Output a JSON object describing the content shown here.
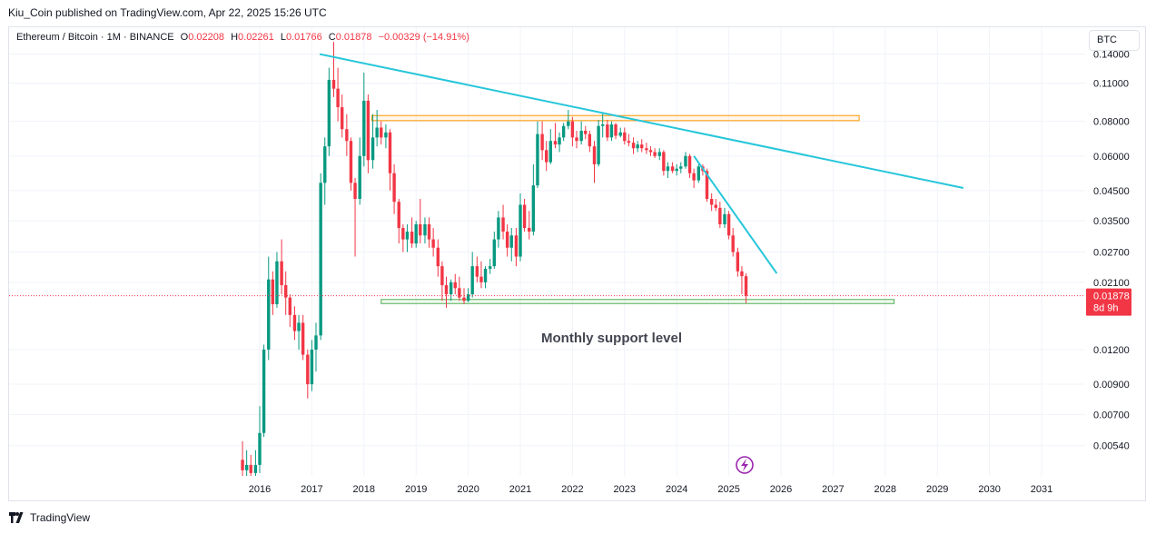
{
  "publish_line": "Kiu_Coin published on TradingView.com, Apr 22, 2025 15:26 UTC",
  "symbol": {
    "name": "Ethereum / Bitcoin · 1M · BINANCE",
    "open_label": "O",
    "open": "0.02208",
    "high_label": "H",
    "high": "0.02261",
    "low_label": "L",
    "low": "0.01766",
    "close_label": "C",
    "close": "0.01878",
    "change": "−0.00329 (−14.91%)"
  },
  "currency_button": "BTC",
  "price_tag": {
    "price": "0.01878",
    "countdown": "8d 9h"
  },
  "annotation": "Monthly support level",
  "footer_brand": "TradingView",
  "colors": {
    "up": "#089981",
    "down": "#f23645",
    "trendline": "#26c6da",
    "resistance_zone": "#ff9800",
    "support_zone": "#4caf50",
    "grid": "#f0f3fa"
  },
  "chart_data": {
    "type": "candlestick",
    "scale": "log",
    "y_ticks": [
      "0.14000",
      "0.11000",
      "0.08000",
      "0.06000",
      "0.04500",
      "0.03500",
      "0.02700",
      "0.02100",
      "0.01200",
      "0.00900",
      "0.00700",
      "0.00540"
    ],
    "x_ticks": [
      "2016",
      "2017",
      "2018",
      "2019",
      "2020",
      "2021",
      "2022",
      "2023",
      "2024",
      "2025",
      "2026",
      "2027",
      "2028",
      "2029",
      "2030",
      "2031"
    ],
    "ylim": [
      0.0042,
      0.175
    ],
    "candles": [
      {
        "t": 2015.67,
        "o": 0.0048,
        "h": 0.0056,
        "l": 0.0042,
        "c": 0.0044
      },
      {
        "t": 2015.75,
        "o": 0.0044,
        "h": 0.0052,
        "l": 0.0042,
        "c": 0.0046
      },
      {
        "t": 2015.83,
        "o": 0.0046,
        "h": 0.005,
        "l": 0.0042,
        "c": 0.0043
      },
      {
        "t": 2015.92,
        "o": 0.0043,
        "h": 0.0052,
        "l": 0.0042,
        "c": 0.0046
      },
      {
        "t": 2016.0,
        "o": 0.0046,
        "h": 0.0075,
        "l": 0.0043,
        "c": 0.006
      },
      {
        "t": 2016.08,
        "o": 0.006,
        "h": 0.0125,
        "l": 0.0058,
        "c": 0.012
      },
      {
        "t": 2016.17,
        "o": 0.012,
        "h": 0.026,
        "l": 0.011,
        "c": 0.0215
      },
      {
        "t": 2016.25,
        "o": 0.0215,
        "h": 0.023,
        "l": 0.016,
        "c": 0.0175
      },
      {
        "t": 2016.33,
        "o": 0.0175,
        "h": 0.027,
        "l": 0.017,
        "c": 0.025
      },
      {
        "t": 2016.42,
        "o": 0.025,
        "h": 0.03,
        "l": 0.019,
        "c": 0.0205
      },
      {
        "t": 2016.5,
        "o": 0.0205,
        "h": 0.023,
        "l": 0.016,
        "c": 0.0185
      },
      {
        "t": 2016.58,
        "o": 0.0185,
        "h": 0.019,
        "l": 0.0145,
        "c": 0.016
      },
      {
        "t": 2016.67,
        "o": 0.016,
        "h": 0.0172,
        "l": 0.013,
        "c": 0.014
      },
      {
        "t": 2016.75,
        "o": 0.014,
        "h": 0.016,
        "l": 0.012,
        "c": 0.015
      },
      {
        "t": 2016.83,
        "o": 0.015,
        "h": 0.016,
        "l": 0.011,
        "c": 0.0115
      },
      {
        "t": 2016.92,
        "o": 0.0115,
        "h": 0.012,
        "l": 0.008,
        "c": 0.009
      },
      {
        "t": 2017.0,
        "o": 0.009,
        "h": 0.013,
        "l": 0.0085,
        "c": 0.012
      },
      {
        "t": 2017.08,
        "o": 0.012,
        "h": 0.015,
        "l": 0.01,
        "c": 0.0135
      },
      {
        "t": 2017.17,
        "o": 0.0135,
        "h": 0.052,
        "l": 0.013,
        "c": 0.048
      },
      {
        "t": 2017.25,
        "o": 0.048,
        "h": 0.07,
        "l": 0.04,
        "c": 0.065
      },
      {
        "t": 2017.33,
        "o": 0.065,
        "h": 0.125,
        "l": 0.06,
        "c": 0.113
      },
      {
        "t": 2017.42,
        "o": 0.113,
        "h": 0.155,
        "l": 0.098,
        "c": 0.105
      },
      {
        "t": 2017.5,
        "o": 0.105,
        "h": 0.125,
        "l": 0.08,
        "c": 0.09
      },
      {
        "t": 2017.58,
        "o": 0.09,
        "h": 0.1,
        "l": 0.07,
        "c": 0.075
      },
      {
        "t": 2017.67,
        "o": 0.075,
        "h": 0.085,
        "l": 0.06,
        "c": 0.068
      },
      {
        "t": 2017.75,
        "o": 0.068,
        "h": 0.07,
        "l": 0.045,
        "c": 0.048
      },
      {
        "t": 2017.83,
        "o": 0.048,
        "h": 0.05,
        "l": 0.026,
        "c": 0.042
      },
      {
        "t": 2017.92,
        "o": 0.042,
        "h": 0.07,
        "l": 0.04,
        "c": 0.06
      },
      {
        "t": 2018.0,
        "o": 0.06,
        "h": 0.12,
        "l": 0.055,
        "c": 0.095
      },
      {
        "t": 2018.08,
        "o": 0.095,
        "h": 0.1,
        "l": 0.052,
        "c": 0.058
      },
      {
        "t": 2018.17,
        "o": 0.058,
        "h": 0.085,
        "l": 0.054,
        "c": 0.07
      },
      {
        "t": 2018.25,
        "o": 0.07,
        "h": 0.088,
        "l": 0.065,
        "c": 0.076
      },
      {
        "t": 2018.33,
        "o": 0.076,
        "h": 0.08,
        "l": 0.066,
        "c": 0.07
      },
      {
        "t": 2018.42,
        "o": 0.07,
        "h": 0.078,
        "l": 0.064,
        "c": 0.073
      },
      {
        "t": 2018.5,
        "o": 0.073,
        "h": 0.075,
        "l": 0.045,
        "c": 0.052
      },
      {
        "t": 2018.58,
        "o": 0.052,
        "h": 0.056,
        "l": 0.037,
        "c": 0.041
      },
      {
        "t": 2018.67,
        "o": 0.041,
        "h": 0.042,
        "l": 0.029,
        "c": 0.033
      },
      {
        "t": 2018.75,
        "o": 0.033,
        "h": 0.034,
        "l": 0.027,
        "c": 0.03
      },
      {
        "t": 2018.83,
        "o": 0.03,
        "h": 0.034,
        "l": 0.027,
        "c": 0.032
      },
      {
        "t": 2018.92,
        "o": 0.032,
        "h": 0.036,
        "l": 0.028,
        "c": 0.029
      },
      {
        "t": 2019.0,
        "o": 0.029,
        "h": 0.035,
        "l": 0.028,
        "c": 0.034
      },
      {
        "t": 2019.08,
        "o": 0.034,
        "h": 0.042,
        "l": 0.029,
        "c": 0.031
      },
      {
        "t": 2019.17,
        "o": 0.031,
        "h": 0.036,
        "l": 0.029,
        "c": 0.034
      },
      {
        "t": 2019.25,
        "o": 0.034,
        "h": 0.036,
        "l": 0.028,
        "c": 0.03
      },
      {
        "t": 2019.33,
        "o": 0.03,
        "h": 0.033,
        "l": 0.026,
        "c": 0.028
      },
      {
        "t": 2019.42,
        "o": 0.028,
        "h": 0.03,
        "l": 0.022,
        "c": 0.024
      },
      {
        "t": 2019.5,
        "o": 0.024,
        "h": 0.025,
        "l": 0.018,
        "c": 0.0205
      },
      {
        "t": 2019.58,
        "o": 0.0205,
        "h": 0.022,
        "l": 0.017,
        "c": 0.019
      },
      {
        "t": 2019.67,
        "o": 0.019,
        "h": 0.0215,
        "l": 0.018,
        "c": 0.021
      },
      {
        "t": 2019.75,
        "o": 0.021,
        "h": 0.0225,
        "l": 0.019,
        "c": 0.02
      },
      {
        "t": 2019.83,
        "o": 0.02,
        "h": 0.022,
        "l": 0.018,
        "c": 0.0185
      },
      {
        "t": 2019.92,
        "o": 0.0185,
        "h": 0.02,
        "l": 0.0175,
        "c": 0.018
      },
      {
        "t": 2020.0,
        "o": 0.018,
        "h": 0.02,
        "l": 0.0178,
        "c": 0.019
      },
      {
        "t": 2020.08,
        "o": 0.019,
        "h": 0.027,
        "l": 0.0185,
        "c": 0.024
      },
      {
        "t": 2020.17,
        "o": 0.024,
        "h": 0.026,
        "l": 0.021,
        "c": 0.022
      },
      {
        "t": 2020.25,
        "o": 0.022,
        "h": 0.025,
        "l": 0.02,
        "c": 0.021
      },
      {
        "t": 2020.33,
        "o": 0.021,
        "h": 0.024,
        "l": 0.02,
        "c": 0.0235
      },
      {
        "t": 2020.42,
        "o": 0.0235,
        "h": 0.0255,
        "l": 0.0225,
        "c": 0.024
      },
      {
        "t": 2020.5,
        "o": 0.024,
        "h": 0.032,
        "l": 0.0235,
        "c": 0.03
      },
      {
        "t": 2020.58,
        "o": 0.03,
        "h": 0.038,
        "l": 0.028,
        "c": 0.036
      },
      {
        "t": 2020.67,
        "o": 0.036,
        "h": 0.04,
        "l": 0.03,
        "c": 0.032
      },
      {
        "t": 2020.75,
        "o": 0.032,
        "h": 0.034,
        "l": 0.026,
        "c": 0.028
      },
      {
        "t": 2020.83,
        "o": 0.028,
        "h": 0.033,
        "l": 0.025,
        "c": 0.031
      },
      {
        "t": 2020.92,
        "o": 0.031,
        "h": 0.033,
        "l": 0.024,
        "c": 0.026
      },
      {
        "t": 2021.0,
        "o": 0.026,
        "h": 0.044,
        "l": 0.025,
        "c": 0.04
      },
      {
        "t": 2021.08,
        "o": 0.04,
        "h": 0.042,
        "l": 0.032,
        "c": 0.033
      },
      {
        "t": 2021.17,
        "o": 0.033,
        "h": 0.038,
        "l": 0.03,
        "c": 0.032
      },
      {
        "t": 2021.25,
        "o": 0.032,
        "h": 0.056,
        "l": 0.031,
        "c": 0.047
      },
      {
        "t": 2021.33,
        "o": 0.047,
        "h": 0.08,
        "l": 0.046,
        "c": 0.072
      },
      {
        "t": 2021.42,
        "o": 0.072,
        "h": 0.08,
        "l": 0.058,
        "c": 0.063
      },
      {
        "t": 2021.5,
        "o": 0.063,
        "h": 0.068,
        "l": 0.053,
        "c": 0.057
      },
      {
        "t": 2021.58,
        "o": 0.057,
        "h": 0.075,
        "l": 0.056,
        "c": 0.068
      },
      {
        "t": 2021.67,
        "o": 0.068,
        "h": 0.079,
        "l": 0.064,
        "c": 0.066
      },
      {
        "t": 2021.75,
        "o": 0.066,
        "h": 0.073,
        "l": 0.062,
        "c": 0.07
      },
      {
        "t": 2021.83,
        "o": 0.07,
        "h": 0.079,
        "l": 0.068,
        "c": 0.077
      },
      {
        "t": 2021.92,
        "o": 0.077,
        "h": 0.088,
        "l": 0.075,
        "c": 0.08
      },
      {
        "t": 2022.0,
        "o": 0.08,
        "h": 0.083,
        "l": 0.065,
        "c": 0.07
      },
      {
        "t": 2022.08,
        "o": 0.07,
        "h": 0.074,
        "l": 0.064,
        "c": 0.068
      },
      {
        "t": 2022.17,
        "o": 0.068,
        "h": 0.08,
        "l": 0.066,
        "c": 0.074
      },
      {
        "t": 2022.25,
        "o": 0.074,
        "h": 0.077,
        "l": 0.069,
        "c": 0.072
      },
      {
        "t": 2022.33,
        "o": 0.072,
        "h": 0.074,
        "l": 0.062,
        "c": 0.065
      },
      {
        "t": 2022.42,
        "o": 0.065,
        "h": 0.068,
        "l": 0.048,
        "c": 0.056
      },
      {
        "t": 2022.5,
        "o": 0.056,
        "h": 0.081,
        "l": 0.055,
        "c": 0.077
      },
      {
        "t": 2022.58,
        "o": 0.077,
        "h": 0.086,
        "l": 0.07,
        "c": 0.078
      },
      {
        "t": 2022.67,
        "o": 0.078,
        "h": 0.081,
        "l": 0.068,
        "c": 0.07
      },
      {
        "t": 2022.75,
        "o": 0.07,
        "h": 0.08,
        "l": 0.068,
        "c": 0.078
      },
      {
        "t": 2022.83,
        "o": 0.078,
        "h": 0.079,
        "l": 0.069,
        "c": 0.071
      },
      {
        "t": 2022.92,
        "o": 0.071,
        "h": 0.076,
        "l": 0.07,
        "c": 0.073
      },
      {
        "t": 2023.0,
        "o": 0.073,
        "h": 0.076,
        "l": 0.066,
        "c": 0.068
      },
      {
        "t": 2023.08,
        "o": 0.068,
        "h": 0.072,
        "l": 0.065,
        "c": 0.067
      },
      {
        "t": 2023.17,
        "o": 0.067,
        "h": 0.07,
        "l": 0.061,
        "c": 0.064
      },
      {
        "t": 2023.25,
        "o": 0.064,
        "h": 0.068,
        "l": 0.062,
        "c": 0.066
      },
      {
        "t": 2023.33,
        "o": 0.066,
        "h": 0.069,
        "l": 0.062,
        "c": 0.064
      },
      {
        "t": 2023.42,
        "o": 0.064,
        "h": 0.067,
        "l": 0.061,
        "c": 0.063
      },
      {
        "t": 2023.5,
        "o": 0.063,
        "h": 0.065,
        "l": 0.06,
        "c": 0.062
      },
      {
        "t": 2023.58,
        "o": 0.062,
        "h": 0.064,
        "l": 0.059,
        "c": 0.06
      },
      {
        "t": 2023.67,
        "o": 0.06,
        "h": 0.064,
        "l": 0.058,
        "c": 0.062
      },
      {
        "t": 2023.75,
        "o": 0.062,
        "h": 0.063,
        "l": 0.051,
        "c": 0.053
      },
      {
        "t": 2023.83,
        "o": 0.053,
        "h": 0.057,
        "l": 0.05,
        "c": 0.055
      },
      {
        "t": 2023.92,
        "o": 0.055,
        "h": 0.057,
        "l": 0.052,
        "c": 0.053
      },
      {
        "t": 2024.0,
        "o": 0.053,
        "h": 0.056,
        "l": 0.051,
        "c": 0.054
      },
      {
        "t": 2024.08,
        "o": 0.054,
        "h": 0.057,
        "l": 0.052,
        "c": 0.055
      },
      {
        "t": 2024.17,
        "o": 0.055,
        "h": 0.062,
        "l": 0.054,
        "c": 0.06
      },
      {
        "t": 2024.25,
        "o": 0.06,
        "h": 0.061,
        "l": 0.05,
        "c": 0.052
      },
      {
        "t": 2024.33,
        "o": 0.052,
        "h": 0.054,
        "l": 0.046,
        "c": 0.049
      },
      {
        "t": 2024.42,
        "o": 0.049,
        "h": 0.056,
        "l": 0.048,
        "c": 0.055
      },
      {
        "t": 2024.5,
        "o": 0.055,
        "h": 0.056,
        "l": 0.051,
        "c": 0.053
      },
      {
        "t": 2024.58,
        "o": 0.053,
        "h": 0.054,
        "l": 0.041,
        "c": 0.042
      },
      {
        "t": 2024.67,
        "o": 0.042,
        "h": 0.044,
        "l": 0.038,
        "c": 0.04
      },
      {
        "t": 2024.75,
        "o": 0.04,
        "h": 0.042,
        "l": 0.038,
        "c": 0.039
      },
      {
        "t": 2024.83,
        "o": 0.039,
        "h": 0.041,
        "l": 0.033,
        "c": 0.034
      },
      {
        "t": 2024.92,
        "o": 0.034,
        "h": 0.039,
        "l": 0.033,
        "c": 0.037
      },
      {
        "t": 2025.0,
        "o": 0.037,
        "h": 0.038,
        "l": 0.03,
        "c": 0.031
      },
      {
        "t": 2025.08,
        "o": 0.031,
        "h": 0.033,
        "l": 0.026,
        "c": 0.027
      },
      {
        "t": 2025.17,
        "o": 0.027,
        "h": 0.028,
        "l": 0.022,
        "c": 0.023
      },
      {
        "t": 2025.25,
        "o": 0.023,
        "h": 0.024,
        "l": 0.019,
        "c": 0.0221
      },
      {
        "t": 2025.33,
        "o": 0.02208,
        "h": 0.02261,
        "l": 0.01766,
        "c": 0.01878
      }
    ],
    "trendlines": [
      {
        "name": "long-term",
        "from": {
          "t": 2017.15,
          "p": 0.14
        },
        "to": {
          "t": 2029.5,
          "p": 0.046
        }
      },
      {
        "name": "short-term",
        "from": {
          "t": 2024.33,
          "p": 0.06
        },
        "to": {
          "t": 2025.92,
          "p": 0.0226
        }
      }
    ],
    "zones": [
      {
        "name": "resistance",
        "t0": 2018.15,
        "t1": 2027.5,
        "p0": 0.0805,
        "p1": 0.084
      },
      {
        "name": "support",
        "t0": 2018.33,
        "t1": 2028.17,
        "p0": 0.0176,
        "p1": 0.0182
      }
    ],
    "current_price": 0.01878
  }
}
